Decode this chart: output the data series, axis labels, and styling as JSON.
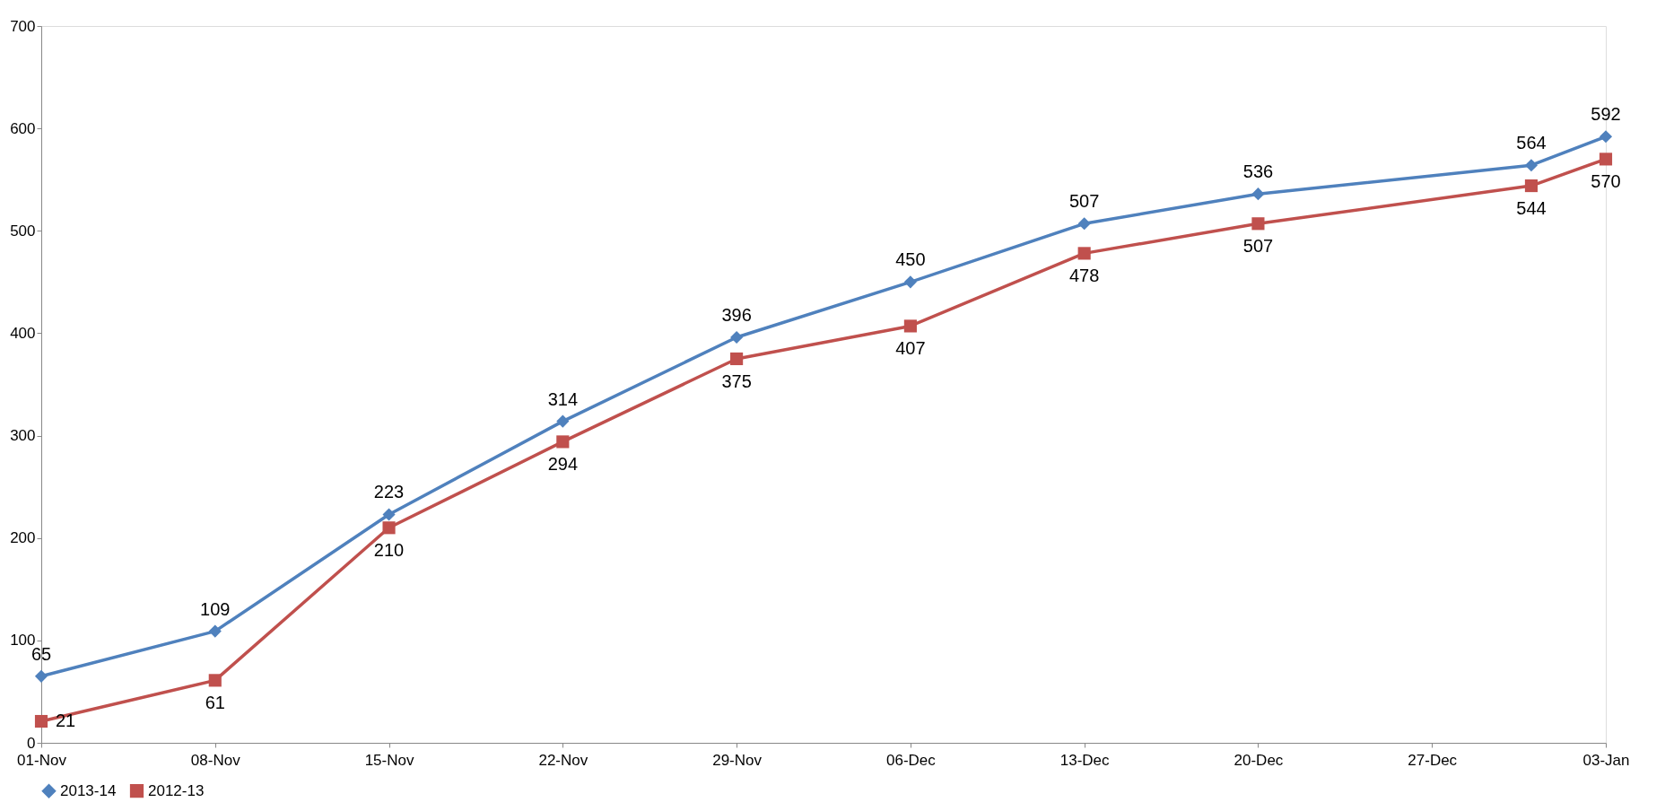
{
  "chart_data": {
    "type": "line",
    "x": [
      "2013-11-01",
      "2013-11-08",
      "2013-11-15",
      "2013-11-22",
      "2013-11-29",
      "2013-12-06",
      "2013-12-13",
      "2013-12-20",
      "2013-12-31",
      "2014-01-03"
    ],
    "series": [
      {
        "name": "2013-14",
        "color": "#4f81bd",
        "marker": "diamond",
        "values": [
          65,
          109,
          223,
          314,
          396,
          450,
          507,
          536,
          564,
          592
        ]
      },
      {
        "name": "2012-13",
        "color": "#c0504d",
        "marker": "square",
        "values": [
          21,
          61,
          210,
          294,
          375,
          407,
          478,
          507,
          544,
          570
        ]
      }
    ],
    "xlim": [
      "2013-11-01",
      "2014-01-03"
    ],
    "xticks": [
      {
        "value": "2013-11-01",
        "label": "01-Nov"
      },
      {
        "value": "2013-11-08",
        "label": "08-Nov"
      },
      {
        "value": "2013-11-15",
        "label": "15-Nov"
      },
      {
        "value": "2013-11-22",
        "label": "22-Nov"
      },
      {
        "value": "2013-11-29",
        "label": "29-Nov"
      },
      {
        "value": "2013-12-06",
        "label": "06-Dec"
      },
      {
        "value": "2013-12-13",
        "label": "13-Dec"
      },
      {
        "value": "2013-12-20",
        "label": "20-Dec"
      },
      {
        "value": "2013-12-27",
        "label": "27-Dec"
      },
      {
        "value": "2014-01-03",
        "label": "03-Jan"
      }
    ],
    "ylim": [
      0,
      700
    ],
    "yticks": [
      0,
      100,
      200,
      300,
      400,
      500,
      600,
      700
    ],
    "grid": false,
    "legend": "bottom",
    "data_labels": true,
    "line_style": "solid"
  }
}
